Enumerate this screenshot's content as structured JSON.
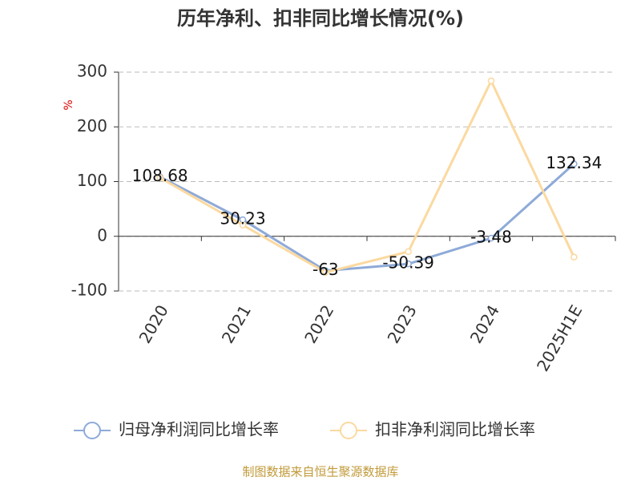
{
  "chart_data": {
    "type": "line",
    "title": "历年净利、扣非同比增长情况(%)",
    "y_label": "%",
    "categories": [
      "2020",
      "2021",
      "2022",
      "2023",
      "2024",
      "2025H1E"
    ],
    "series": [
      {
        "name": "归母净利润同比增长率",
        "color": "#8eaad8",
        "values": [
          108.68,
          30.23,
          -63,
          -50.39,
          -3.48,
          132.34
        ],
        "show_labels": true
      },
      {
        "name": "扣非净利润同比增长率",
        "color": "#fbd9a0",
        "values": [
          107,
          20.5,
          -66,
          -28,
          284,
          -38
        ],
        "show_labels": false
      }
    ],
    "ylim": [
      -100,
      300
    ],
    "yticks": [
      -100,
      0,
      100,
      200,
      300
    ],
    "grid": true,
    "legend": "bottom",
    "footer": "制图数据来自恒生聚源数据库"
  }
}
